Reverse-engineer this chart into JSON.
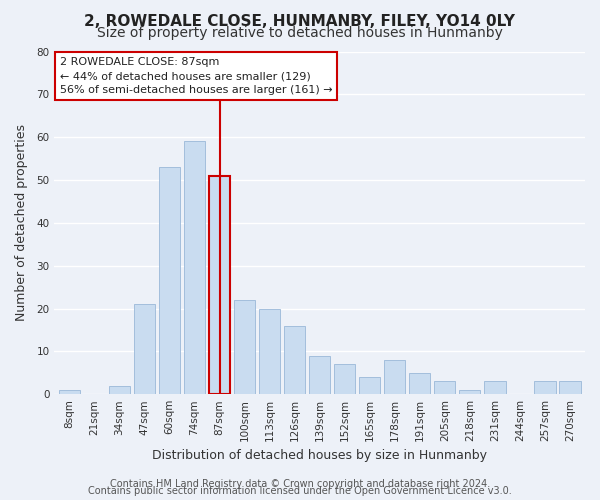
{
  "title": "2, ROWEDALE CLOSE, HUNMANBY, FILEY, YO14 0LY",
  "subtitle": "Size of property relative to detached houses in Hunmanby",
  "xlabel": "Distribution of detached houses by size in Hunmanby",
  "ylabel": "Number of detached properties",
  "categories": [
    "8sqm",
    "21sqm",
    "34sqm",
    "47sqm",
    "60sqm",
    "74sqm",
    "87sqm",
    "100sqm",
    "113sqm",
    "126sqm",
    "139sqm",
    "152sqm",
    "165sqm",
    "178sqm",
    "191sqm",
    "205sqm",
    "218sqm",
    "231sqm",
    "244sqm",
    "257sqm",
    "270sqm"
  ],
  "values": [
    1,
    0,
    2,
    21,
    53,
    59,
    51,
    22,
    20,
    16,
    9,
    7,
    4,
    8,
    5,
    3,
    1,
    3,
    0,
    3,
    3
  ],
  "bar_color": "#c9dcf0",
  "bar_edge_color": "#9ab8d8",
  "highlight_index": 6,
  "highlight_color": "#cc0000",
  "ylim": [
    0,
    80
  ],
  "yticks": [
    0,
    10,
    20,
    30,
    40,
    50,
    60,
    70,
    80
  ],
  "annotation_title": "2 ROWEDALE CLOSE: 87sqm",
  "annotation_line1": "← 44% of detached houses are smaller (129)",
  "annotation_line2": "56% of semi-detached houses are larger (161) →",
  "footer1": "Contains HM Land Registry data © Crown copyright and database right 2024.",
  "footer2": "Contains public sector information licensed under the Open Government Licence v3.0.",
  "background_color": "#edf1f8",
  "grid_color": "#ffffff",
  "title_fontsize": 11,
  "subtitle_fontsize": 10,
  "axis_label_fontsize": 9,
  "tick_fontsize": 7.5,
  "footer_fontsize": 7
}
